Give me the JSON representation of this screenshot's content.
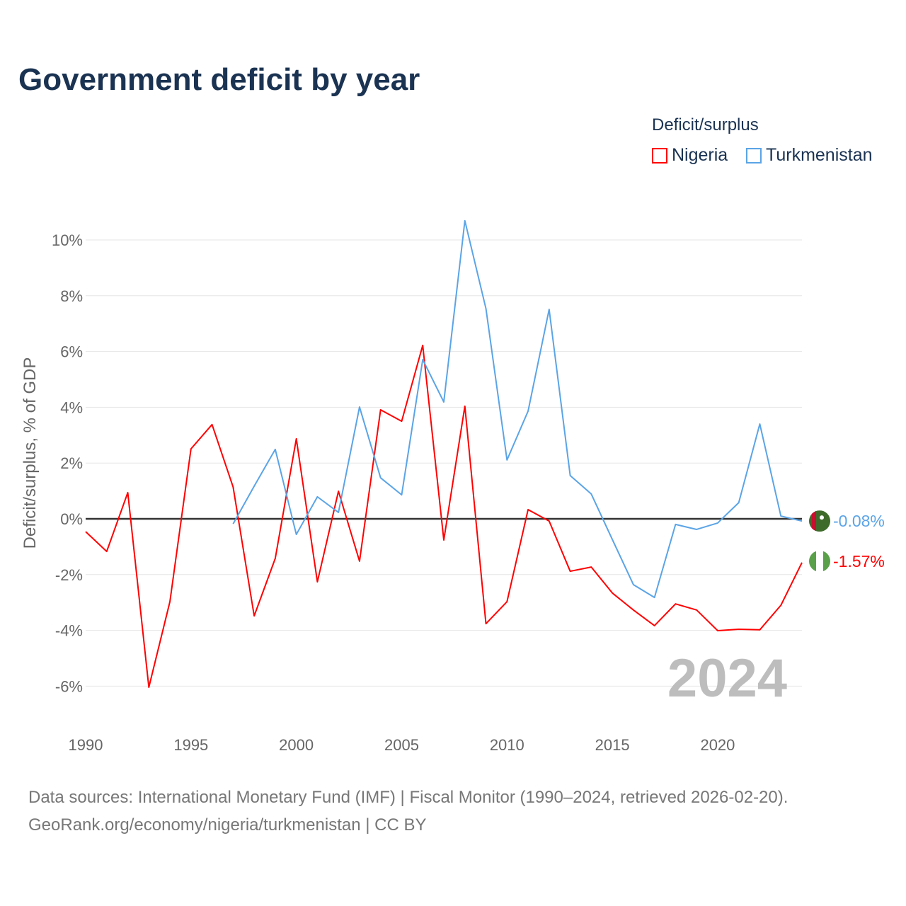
{
  "title": "Government deficit by year",
  "legend": {
    "title": "Deficit/surplus",
    "items": [
      {
        "label": "Nigeria",
        "color": "#ff0000"
      },
      {
        "label": "Turkmenistan",
        "color": "#5ba4e6"
      }
    ]
  },
  "footer": {
    "line1": "Data sources: International Monetary Fund (IMF) | Fiscal Monitor (1990–2024, retrieved 2026-02-20).",
    "line2": "GeoRank.org/economy/nigeria/turkmenistan | CC BY"
  },
  "chart_data": {
    "type": "line",
    "title": "Government deficit by year",
    "ylabel": "Deficit/surplus, % of GDP",
    "xlabel": "",
    "xlim": [
      1990,
      2024
    ],
    "ylim": [
      -7,
      11
    ],
    "x_ticks": [
      1990,
      1995,
      2000,
      2005,
      2010,
      2015,
      2020
    ],
    "x_tick_labels": [
      "1990",
      "1995",
      "2000",
      "2005",
      "2010",
      "2015",
      "2020"
    ],
    "y_ticks": [
      -6,
      -4,
      -2,
      0,
      2,
      4,
      6,
      8,
      10
    ],
    "y_tick_labels": [
      "-6%",
      "-4%",
      "-2%",
      "0%",
      "2%",
      "4%",
      "6%",
      "8%",
      "10%"
    ],
    "grid": true,
    "legend_position": "top-right",
    "year_watermark": "2024",
    "series": [
      {
        "name": "Nigeria",
        "color": "#ff0000",
        "end_label": "-1.57%",
        "x": [
          1990,
          1991,
          1992,
          1993,
          1994,
          1995,
          1996,
          1997,
          1998,
          1999,
          2000,
          2001,
          2002,
          2003,
          2004,
          2005,
          2006,
          2007,
          2008,
          2009,
          2010,
          2011,
          2012,
          2013,
          2014,
          2015,
          2016,
          2017,
          2018,
          2019,
          2020,
          2021,
          2022,
          2023,
          2024
        ],
        "values": [
          -0.46,
          -1.17,
          0.94,
          -6.04,
          -2.97,
          2.51,
          3.38,
          1.14,
          -3.48,
          -1.42,
          2.87,
          -2.26,
          0.99,
          -1.52,
          3.91,
          3.5,
          6.22,
          -0.76,
          4.04,
          -3.76,
          -2.97,
          0.33,
          -0.08,
          -1.88,
          -1.73,
          -2.66,
          -3.27,
          -3.83,
          -3.05,
          -3.27,
          -4.01,
          -3.96,
          -3.98,
          -3.1,
          -1.57
        ]
      },
      {
        "name": "Turkmenistan",
        "color": "#5ba4e6",
        "end_label": "-0.08%",
        "x": [
          1997,
          1998,
          1999,
          2000,
          2001,
          2002,
          2003,
          2004,
          2005,
          2006,
          2007,
          2008,
          2009,
          2010,
          2011,
          2012,
          2013,
          2014,
          2015,
          2016,
          2017,
          2018,
          2019,
          2020,
          2021,
          2022,
          2023,
          2024
        ],
        "values": [
          -0.18,
          1.17,
          2.49,
          -0.56,
          0.79,
          0.23,
          4.01,
          1.47,
          0.86,
          5.71,
          4.19,
          10.69,
          7.54,
          2.11,
          3.86,
          7.51,
          1.55,
          0.89,
          -0.74,
          -2.36,
          -2.82,
          -0.2,
          -0.38,
          -0.15,
          0.58,
          3.4,
          0.1,
          -0.08
        ]
      }
    ]
  }
}
